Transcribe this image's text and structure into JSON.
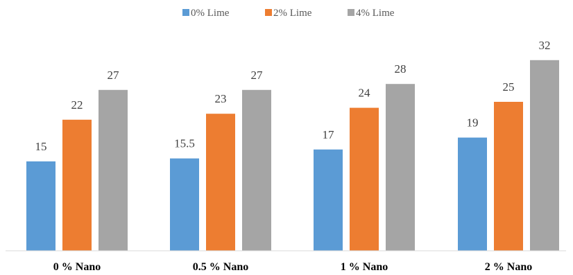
{
  "chart_data": {
    "type": "bar",
    "title": "",
    "xlabel": "",
    "ylabel": "",
    "categories": [
      "0 % Nano",
      "0.5 % Nano",
      "1 % Nano",
      "2 % Nano"
    ],
    "series": [
      {
        "name": "0% Lime",
        "color": "#5b9bd5",
        "values": [
          15,
          15.5,
          17,
          19
        ]
      },
      {
        "name": "2% Lime",
        "color": "#ed7d31",
        "values": [
          22,
          23,
          24,
          25
        ]
      },
      {
        "name": "4% Lime",
        "color": "#a5a5a5",
        "values": [
          27,
          27,
          28,
          32
        ]
      }
    ],
    "ylim": [
      0,
      33
    ],
    "grid": false,
    "legend_position": "top",
    "data_labels": true
  }
}
